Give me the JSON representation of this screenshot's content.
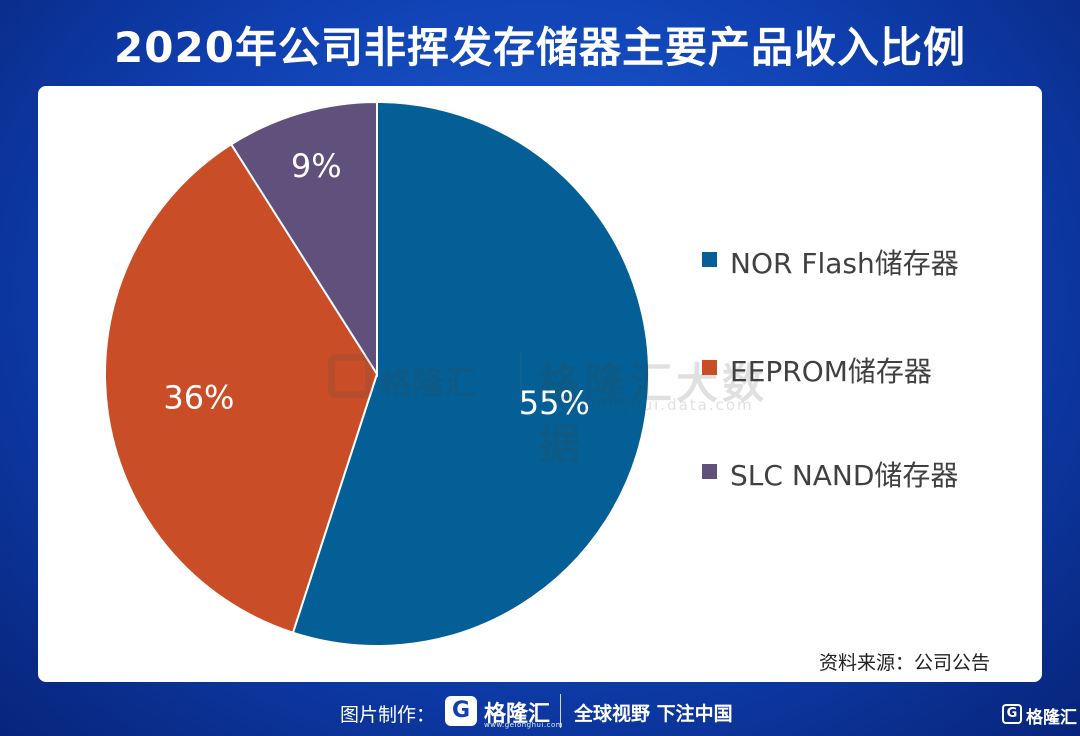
{
  "title": "2020年公司非挥发存储器主要产品收入比例",
  "chart_data": {
    "type": "pie",
    "title": "2020年公司非挥发存储器主要产品收入比例",
    "slices": [
      {
        "label": "NOR Flash储存器",
        "value": 55,
        "display": "55%",
        "color": "#035f95"
      },
      {
        "label": "EEPROM储存器",
        "value": 36,
        "display": "36%",
        "color": "#c94d26"
      },
      {
        "label": "SLC NAND储存器",
        "value": 9,
        "display": "9%",
        "color": "#60507c"
      }
    ],
    "start": "12 o'clock, clockwise",
    "legend_position": "right",
    "label_color": "#ffffff"
  },
  "source": "资料来源：公司公告",
  "watermark": {
    "brand": "格隆汇",
    "text": "格隆汇大数据",
    "url": "gelonghui.data.com"
  },
  "footer": {
    "prefix": "图片制作：",
    "logo_letter": "G",
    "brand": "格隆汇",
    "brand_url": "www.gelonghui.com",
    "slogan": "全球视野 下注中国"
  },
  "corner_brand": "格隆汇"
}
